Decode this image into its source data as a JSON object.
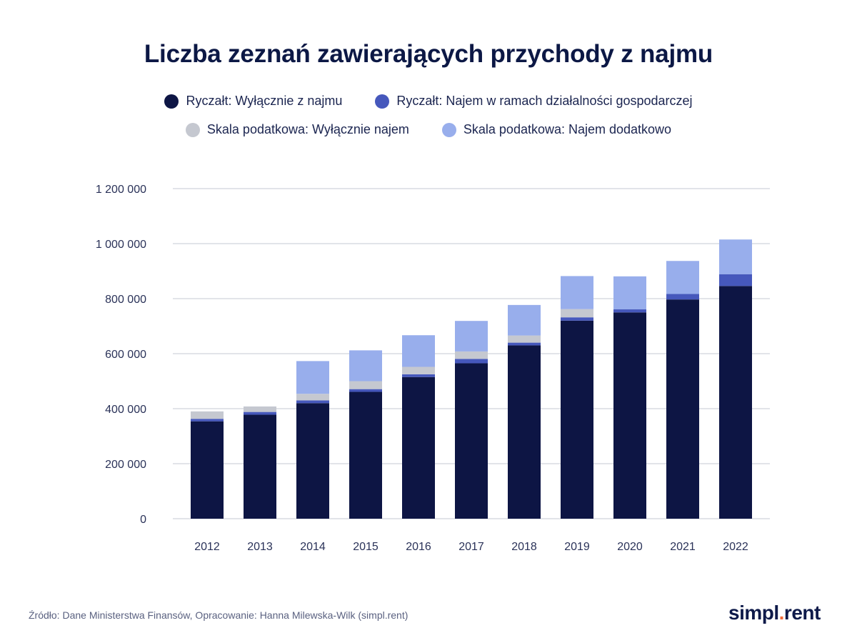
{
  "title": "Liczba zeznań zawierających przychody z najmu",
  "source": "Źródło: Dane Ministerstwa Finansów, Opracowanie: Hanna Milewska-Wilk (simpl.rent)",
  "logo": {
    "left": "simpl",
    "dot": ".",
    "right": "rent"
  },
  "colors": {
    "ryczalt_najem": "#0d1544",
    "ryczalt_dzialalnosc": "#4658bc",
    "skala_wylacznie": "#c5c8d0",
    "skala_dodatkowo": "#98aeec",
    "grid": "#d8dbe2"
  },
  "chart_data": {
    "type": "bar",
    "stacked": true,
    "categories": [
      "2012",
      "2013",
      "2014",
      "2015",
      "2016",
      "2017",
      "2018",
      "2019",
      "2020",
      "2021",
      "2022"
    ],
    "series": [
      {
        "name": "Ryczałt: Wyłącznie z najmu",
        "color": "#0d1544",
        "values": [
          354000,
          378000,
          420000,
          461000,
          515000,
          565000,
          630000,
          720000,
          750000,
          797000,
          846000
        ]
      },
      {
        "name": "Ryczałt: Najem w ramach działalności gospodarczej",
        "color": "#4658bc",
        "values": [
          9000,
          10000,
          10000,
          10000,
          10000,
          16000,
          10000,
          12000,
          11000,
          20000,
          43000
        ]
      },
      {
        "name": "Skala podatkowa: Wyłącznie najem",
        "color": "#c5c8d0",
        "values": [
          27000,
          20000,
          24000,
          29000,
          27000,
          27000,
          26000,
          30000,
          0,
          0,
          0
        ]
      },
      {
        "name": "Skala podatkowa: Najem dodatkowo",
        "color": "#98aeec",
        "values": [
          0,
          0,
          119000,
          112000,
          115000,
          111000,
          111000,
          120000,
          120000,
          120000,
          126000
        ]
      }
    ],
    "yticks": [
      0,
      200000,
      400000,
      600000,
      800000,
      1000000,
      1200000
    ],
    "ytick_labels": [
      "0",
      "200 000",
      "400 000",
      "600 000",
      "800 000",
      "1 000 000",
      "1 200 000"
    ],
    "ylim": [
      0,
      1200000
    ],
    "legend_position": "top-center",
    "grid": true
  }
}
